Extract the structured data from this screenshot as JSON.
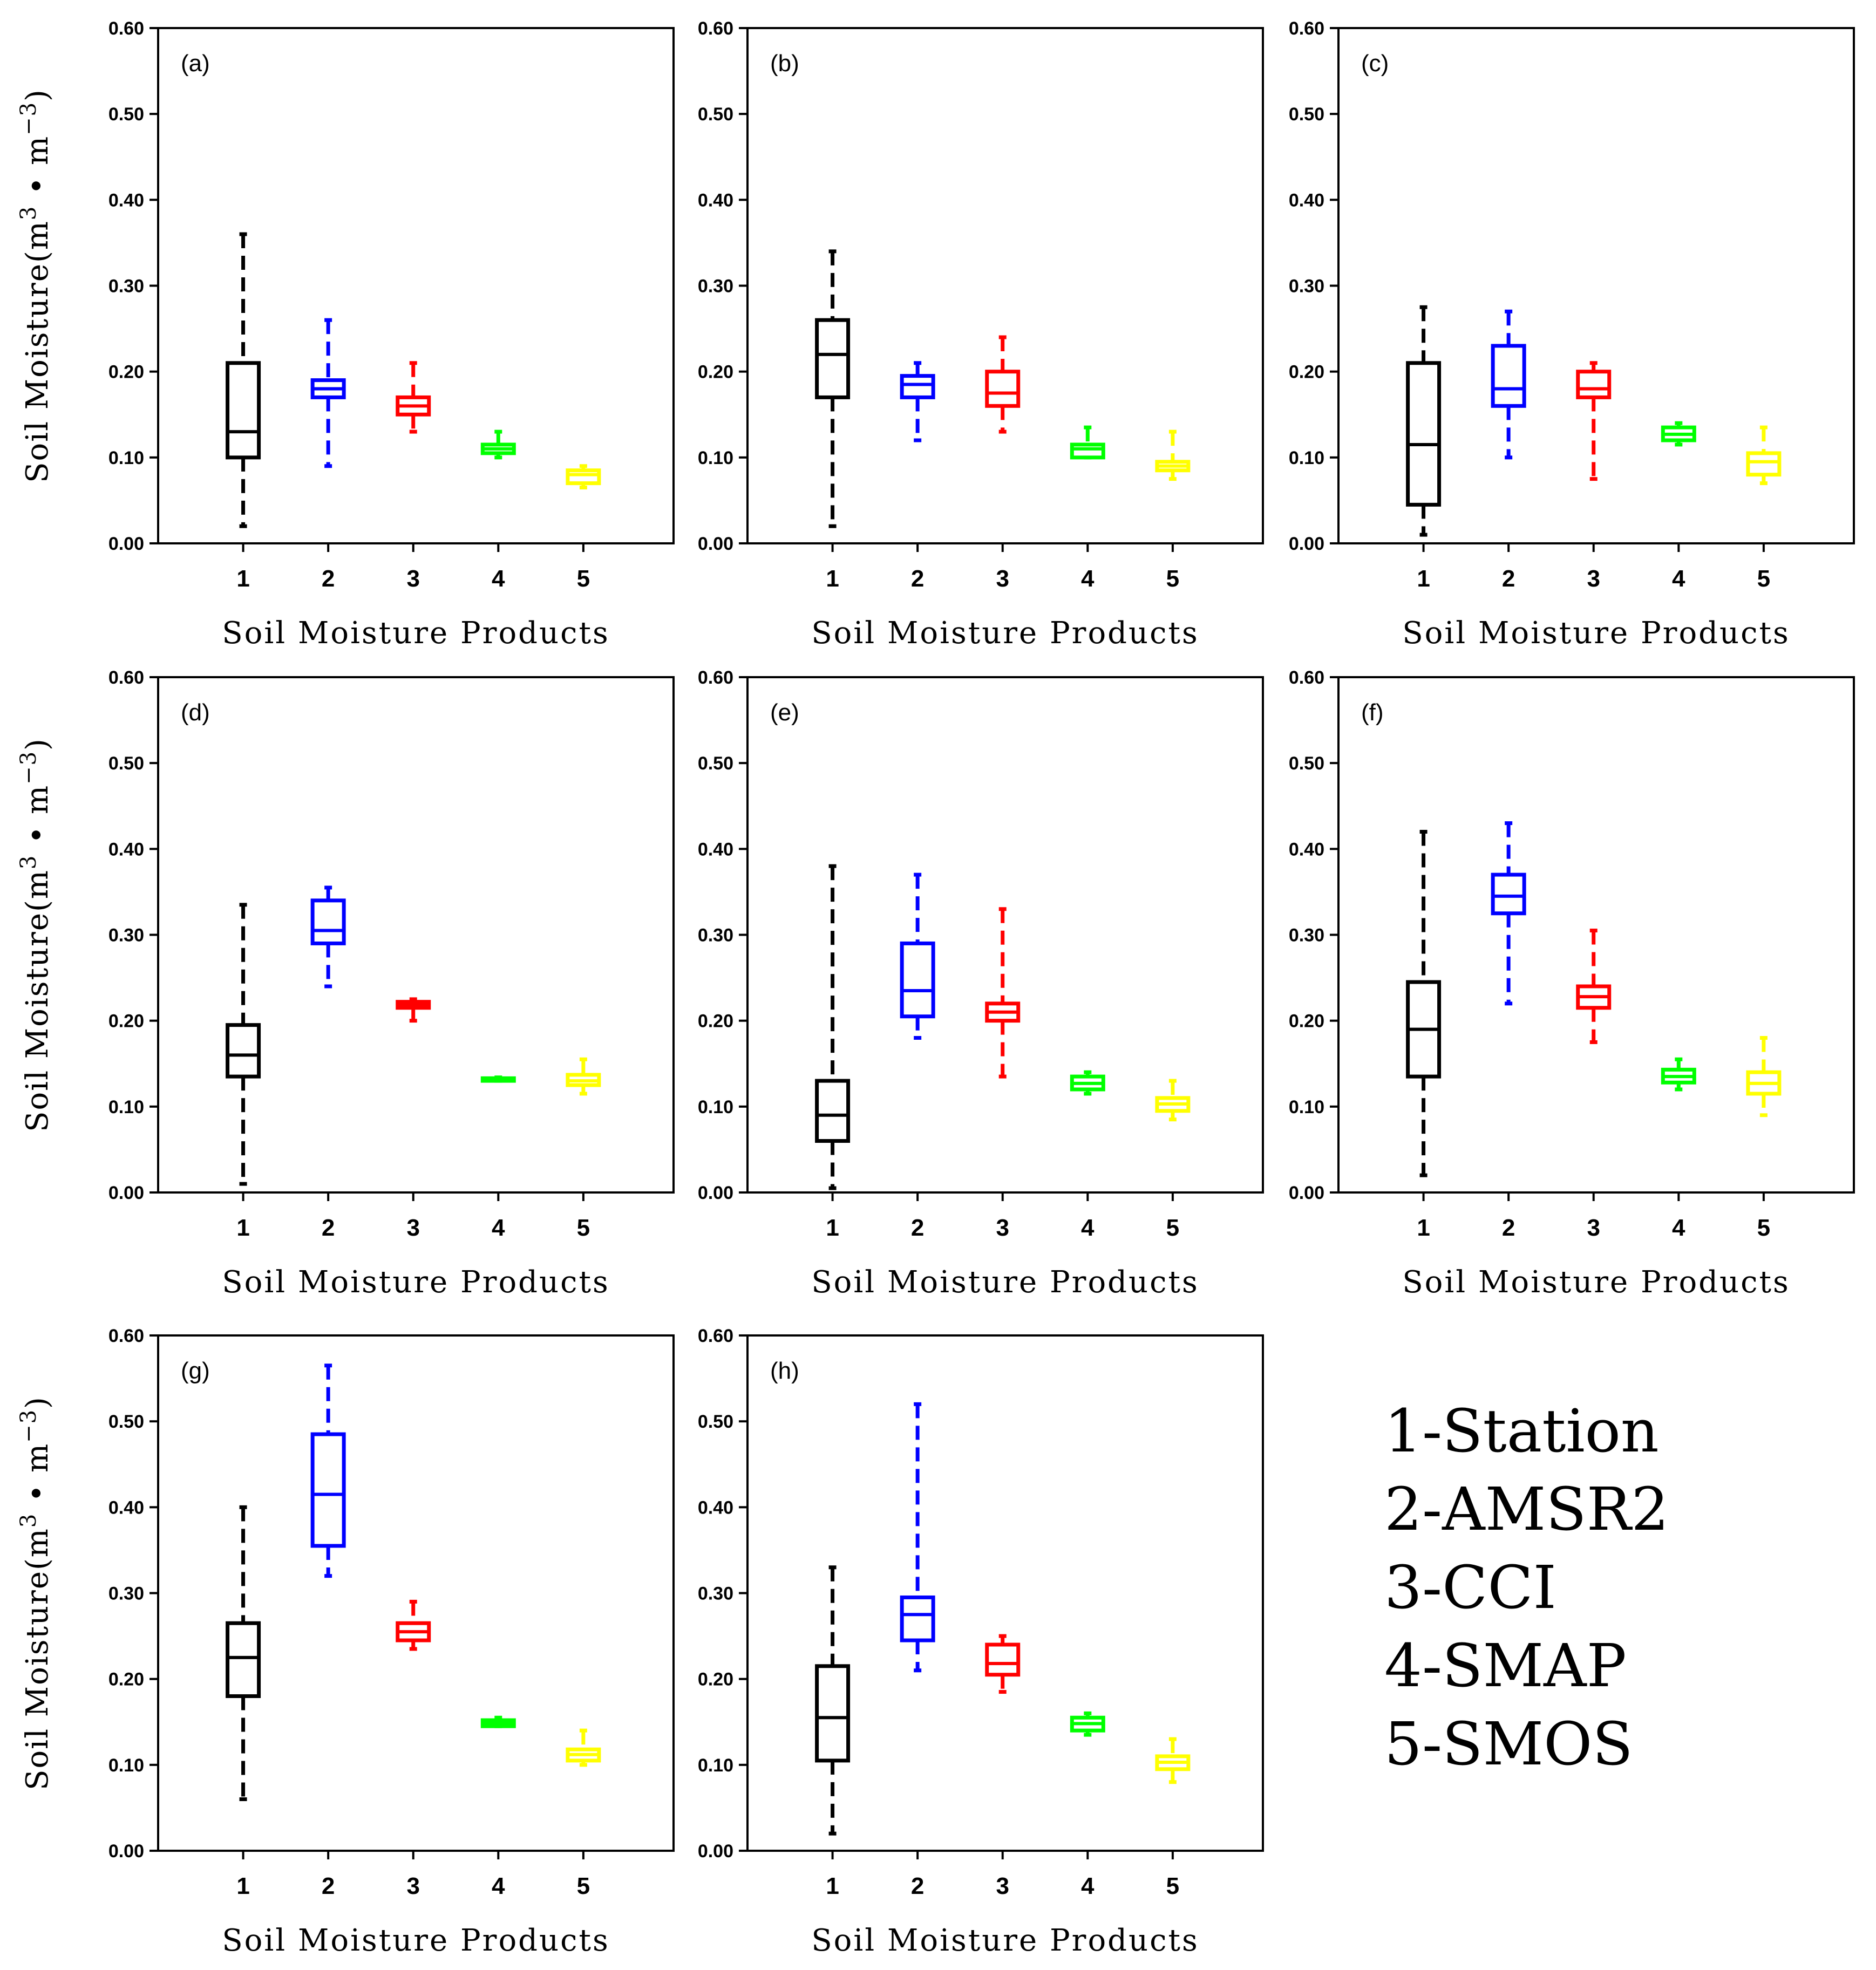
{
  "chart_data": {
    "type": "box",
    "xlabel": "Soil Moisture Products",
    "ylabel": {
      "prefix": "Soil Moisture(m",
      "exp1": "3",
      "mid": " • m",
      "exp2": "−3",
      "suffix": ")"
    },
    "ylim": [
      0,
      0.6
    ],
    "yticks": [
      "0.00",
      "0.10",
      "0.20",
      "0.30",
      "0.40",
      "0.50",
      "0.60"
    ],
    "categories": [
      "1",
      "2",
      "3",
      "4",
      "5"
    ],
    "colors": [
      "#000000",
      "#0000ff",
      "#ff0000",
      "#00ff00",
      "#ffff00"
    ],
    "legend": [
      "1-Station",
      "2-AMSR2",
      "3-CCI",
      "4-SMAP",
      "5-SMOS"
    ],
    "panels": [
      {
        "label": "(a)",
        "boxes": [
          {
            "min": 0.02,
            "q1": 0.1,
            "median": 0.13,
            "q3": 0.21,
            "max": 0.36
          },
          {
            "min": 0.09,
            "q1": 0.17,
            "median": 0.18,
            "q3": 0.19,
            "max": 0.26
          },
          {
            "min": 0.13,
            "q1": 0.15,
            "median": 0.16,
            "q3": 0.17,
            "max": 0.21
          },
          {
            "min": 0.1,
            "q1": 0.105,
            "median": 0.11,
            "q3": 0.115,
            "max": 0.13
          },
          {
            "min": 0.065,
            "q1": 0.07,
            "median": 0.08,
            "q3": 0.085,
            "max": 0.09
          }
        ]
      },
      {
        "label": "(b)",
        "boxes": [
          {
            "min": 0.02,
            "q1": 0.17,
            "median": 0.22,
            "q3": 0.26,
            "max": 0.34
          },
          {
            "min": 0.12,
            "q1": 0.17,
            "median": 0.185,
            "q3": 0.195,
            "max": 0.21
          },
          {
            "min": 0.13,
            "q1": 0.16,
            "median": 0.175,
            "q3": 0.2,
            "max": 0.24
          },
          {
            "min": 0.1,
            "q1": 0.1,
            "median": 0.11,
            "q3": 0.115,
            "max": 0.135
          },
          {
            "min": 0.075,
            "q1": 0.085,
            "median": 0.09,
            "q3": 0.095,
            "max": 0.13
          }
        ]
      },
      {
        "label": "(c)",
        "boxes": [
          {
            "min": 0.01,
            "q1": 0.045,
            "median": 0.115,
            "q3": 0.21,
            "max": 0.275
          },
          {
            "min": 0.1,
            "q1": 0.16,
            "median": 0.18,
            "q3": 0.23,
            "max": 0.27
          },
          {
            "min": 0.075,
            "q1": 0.17,
            "median": 0.18,
            "q3": 0.2,
            "max": 0.21
          },
          {
            "min": 0.115,
            "q1": 0.12,
            "median": 0.127,
            "q3": 0.135,
            "max": 0.14
          },
          {
            "min": 0.07,
            "q1": 0.08,
            "median": 0.095,
            "q3": 0.105,
            "max": 0.135
          }
        ]
      },
      {
        "label": "(d)",
        "boxes": [
          {
            "min": 0.01,
            "q1": 0.135,
            "median": 0.16,
            "q3": 0.195,
            "max": 0.335
          },
          {
            "min": 0.24,
            "q1": 0.29,
            "median": 0.305,
            "q3": 0.34,
            "max": 0.355
          },
          {
            "min": 0.2,
            "q1": 0.215,
            "median": 0.218,
            "q3": 0.222,
            "max": 0.225
          },
          {
            "min": 0.13,
            "q1": 0.13,
            "median": 0.132,
            "q3": 0.133,
            "max": 0.134
          },
          {
            "min": 0.115,
            "q1": 0.125,
            "median": 0.13,
            "q3": 0.137,
            "max": 0.155
          }
        ]
      },
      {
        "label": "(e)",
        "boxes": [
          {
            "min": 0.005,
            "q1": 0.06,
            "median": 0.09,
            "q3": 0.13,
            "max": 0.38
          },
          {
            "min": 0.18,
            "q1": 0.205,
            "median": 0.235,
            "q3": 0.29,
            "max": 0.37
          },
          {
            "min": 0.135,
            "q1": 0.2,
            "median": 0.21,
            "q3": 0.22,
            "max": 0.33
          },
          {
            "min": 0.115,
            "q1": 0.12,
            "median": 0.127,
            "q3": 0.135,
            "max": 0.14
          },
          {
            "min": 0.085,
            "q1": 0.095,
            "median": 0.103,
            "q3": 0.11,
            "max": 0.13
          }
        ]
      },
      {
        "label": "(f)",
        "boxes": [
          {
            "min": 0.02,
            "q1": 0.135,
            "median": 0.19,
            "q3": 0.245,
            "max": 0.42
          },
          {
            "min": 0.22,
            "q1": 0.325,
            "median": 0.345,
            "q3": 0.37,
            "max": 0.43
          },
          {
            "min": 0.175,
            "q1": 0.215,
            "median": 0.228,
            "q3": 0.24,
            "max": 0.305
          },
          {
            "min": 0.12,
            "q1": 0.128,
            "median": 0.135,
            "q3": 0.143,
            "max": 0.155
          },
          {
            "min": 0.09,
            "q1": 0.115,
            "median": 0.127,
            "q3": 0.14,
            "max": 0.18
          }
        ]
      },
      {
        "label": "(g)",
        "boxes": [
          {
            "min": 0.06,
            "q1": 0.18,
            "median": 0.225,
            "q3": 0.265,
            "max": 0.4
          },
          {
            "min": 0.32,
            "q1": 0.355,
            "median": 0.415,
            "q3": 0.485,
            "max": 0.565
          },
          {
            "min": 0.235,
            "q1": 0.245,
            "median": 0.255,
            "q3": 0.265,
            "max": 0.29
          },
          {
            "min": 0.145,
            "q1": 0.145,
            "median": 0.148,
            "q3": 0.152,
            "max": 0.155
          },
          {
            "min": 0.1,
            "q1": 0.105,
            "median": 0.112,
            "q3": 0.118,
            "max": 0.14
          }
        ]
      },
      {
        "label": "(h)",
        "boxes": [
          {
            "min": 0.02,
            "q1": 0.105,
            "median": 0.155,
            "q3": 0.215,
            "max": 0.33
          },
          {
            "min": 0.21,
            "q1": 0.245,
            "median": 0.275,
            "q3": 0.295,
            "max": 0.52
          },
          {
            "min": 0.185,
            "q1": 0.205,
            "median": 0.218,
            "q3": 0.24,
            "max": 0.25
          },
          {
            "min": 0.135,
            "q1": 0.14,
            "median": 0.148,
            "q3": 0.155,
            "max": 0.16
          },
          {
            "min": 0.08,
            "q1": 0.095,
            "median": 0.103,
            "q3": 0.11,
            "max": 0.13
          }
        ]
      }
    ]
  }
}
